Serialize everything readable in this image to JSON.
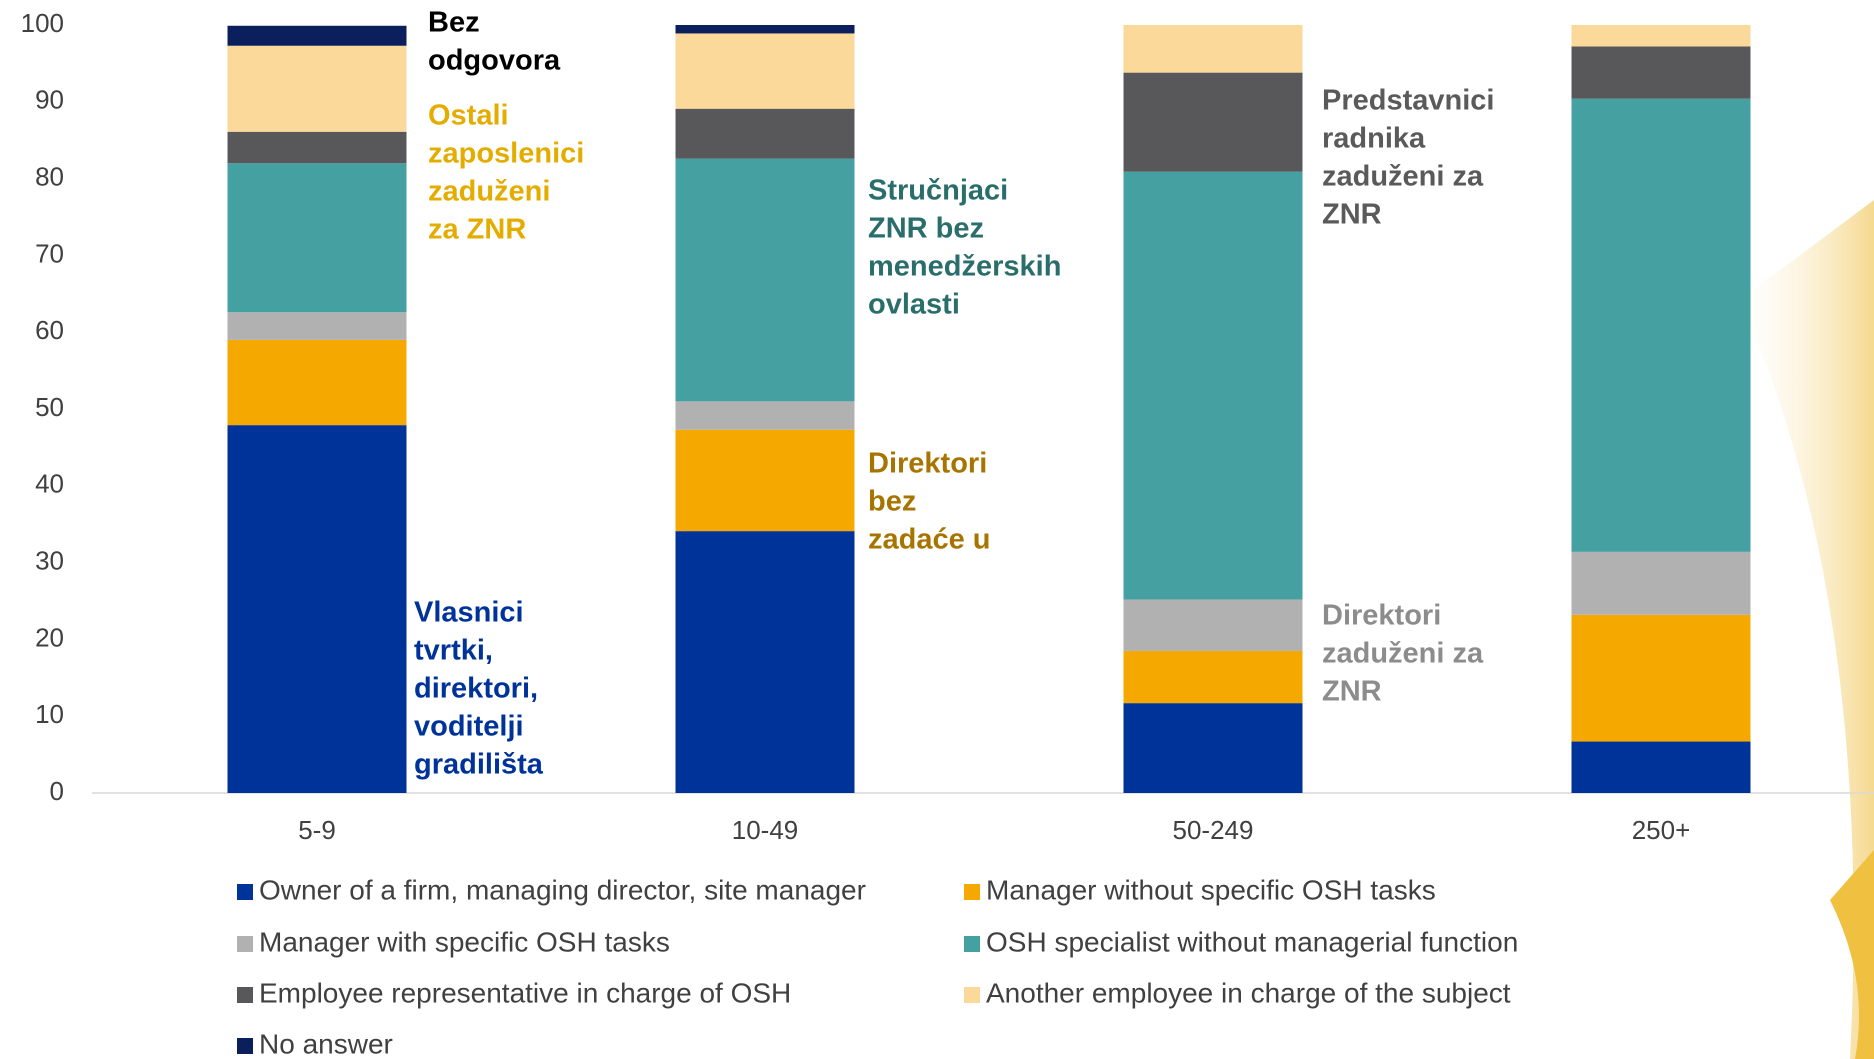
{
  "chart_data": {
    "type": "stacked_bar",
    "categories": [
      "5-9",
      "10-49",
      "50-249",
      "250+"
    ],
    "series": [
      {
        "name": "Owner of a firm, managing director, site manager",
        "color": "#003399",
        "values": [
          47.9,
          34.1,
          11.7,
          6.7
        ]
      },
      {
        "name": "Manager without specific OSH tasks",
        "color": "#f5a800",
        "values": [
          11.1,
          13.2,
          6.8,
          16.5
        ]
      },
      {
        "name": "Manager with specific OSH tasks",
        "color": "#b1b1b1",
        "values": [
          3.6,
          3.7,
          6.7,
          8.2
        ]
      },
      {
        "name": "OSH specialist without managerial function",
        "color": "#45a0a1",
        "values": [
          19.4,
          31.6,
          55.7,
          59.0
        ]
      },
      {
        "name": "Employee representative in charge of OSH",
        "color": "#58585a",
        "values": [
          4.1,
          6.5,
          12.9,
          6.8
        ]
      },
      {
        "name": "Another employee in charge of the subject",
        "color": "#fad99b",
        "values": [
          11.2,
          9.8,
          6.2,
          2.8
        ]
      },
      {
        "name": "No answer",
        "color": "#0b1f5c",
        "values": [
          2.6,
          1.1,
          0,
          0
        ]
      }
    ],
    "ylim": [
      0,
      100
    ],
    "yticks": [
      0,
      10,
      20,
      30,
      40,
      50,
      60,
      70,
      80,
      90,
      100
    ],
    "grid": false,
    "legend": "bottom",
    "annotations": [
      {
        "lines": [
          "Bez",
          "odgovora"
        ],
        "color": "#000000"
      },
      {
        "lines": [
          "Ostali",
          "zaposlenici",
          "zaduženi",
          "za ZNR"
        ],
        "color": "#e5ac00"
      },
      {
        "lines": [
          "Vlasnici",
          "tvrtki,",
          "direktori,",
          "voditelji",
          "gradilišta"
        ],
        "color": "#00339a"
      },
      {
        "lines": [
          "Stručnjaci",
          "ZNR bez",
          "menedžerskih",
          "ovlasti"
        ],
        "color": "#2a6e6b"
      },
      {
        "lines": [
          "Direktori",
          "bez",
          "zadaće u"
        ],
        "color": "#a87400"
      },
      {
        "lines": [
          "Predstavnici",
          "radnika",
          "zaduženi za",
          "ZNR"
        ],
        "color": "#5a5a5a"
      },
      {
        "lines": [
          "Direktori",
          "zaduženi za",
          "ZNR"
        ],
        "color": "#8c8c8c"
      }
    ]
  }
}
